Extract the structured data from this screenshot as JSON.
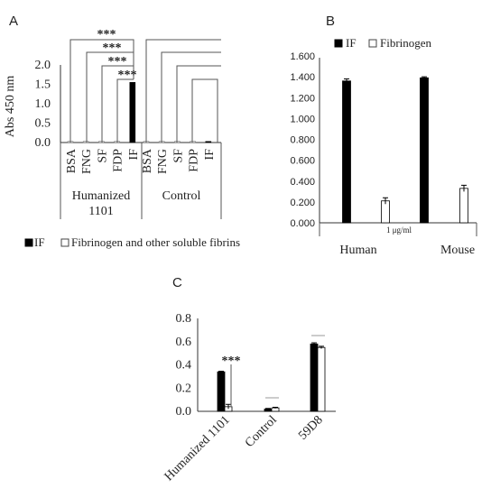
{
  "chart_data": [
    {
      "type": "bar",
      "panel_label": "A",
      "ylabel": "Abs 450 nm",
      "ylim": [
        0,
        2.0
      ],
      "yticks": [
        "0.0",
        "0.5",
        "1.0",
        "1.5",
        "2.0"
      ],
      "groups": [
        {
          "label": "Humanized\n1101",
          "categories": [
            "BSA",
            "FNG",
            "SF",
            "FDP",
            "IF"
          ],
          "values": [
            0.01,
            0.01,
            0.01,
            0.01,
            1.55
          ]
        },
        {
          "label": "Control",
          "categories": [
            "BSA",
            "FNG",
            "SF",
            "FDP",
            "IF"
          ],
          "values": [
            0.01,
            0.01,
            0.01,
            0.01,
            0.02
          ]
        }
      ],
      "significance": [
        "***",
        "***",
        "***",
        "***"
      ],
      "legend": [
        {
          "name": "IF",
          "color": "#000000"
        },
        {
          "name": "Fibrinogen and other soluble fibrins",
          "color": "#ffffff"
        }
      ],
      "legend_placement": "bottom"
    },
    {
      "type": "bar",
      "panel_label": "B",
      "ylim": [
        0,
        1.6
      ],
      "yticks": [
        "0.000",
        "0.200",
        "0.400",
        "0.600",
        "0.800",
        "1.000",
        "1.200",
        "1.400",
        "1.600"
      ],
      "categories": [
        "Human",
        "Mouse"
      ],
      "xlabel": "1 μg/ml",
      "series": [
        {
          "name": "IF",
          "color": "#000000",
          "values": [
            1.36,
            1.39
          ],
          "errors": [
            0.02,
            0.01
          ]
        },
        {
          "name": "Fibrinogen",
          "color": "#ffffff",
          "values": [
            0.21,
            0.33
          ],
          "errors": [
            0.03,
            0.03
          ]
        }
      ],
      "legend_placement": "top"
    },
    {
      "type": "bar",
      "panel_label": "C",
      "ylim": [
        0,
        0.8
      ],
      "yticks": [
        "0.0",
        "0.2",
        "0.4",
        "0.6",
        "0.8"
      ],
      "categories": [
        "Humanized 1101",
        "Control",
        "59D8"
      ],
      "series": [
        {
          "color": "#000000",
          "values": [
            0.34,
            0.02,
            0.58
          ],
          "errors": [
            0.005,
            0.005,
            0.01
          ]
        },
        {
          "color": "#ffffff",
          "values": [
            0.04,
            0.03,
            0.55
          ],
          "errors": [
            0.02,
            0.005,
            0.01
          ]
        }
      ],
      "significance": [
        "***"
      ]
    }
  ]
}
